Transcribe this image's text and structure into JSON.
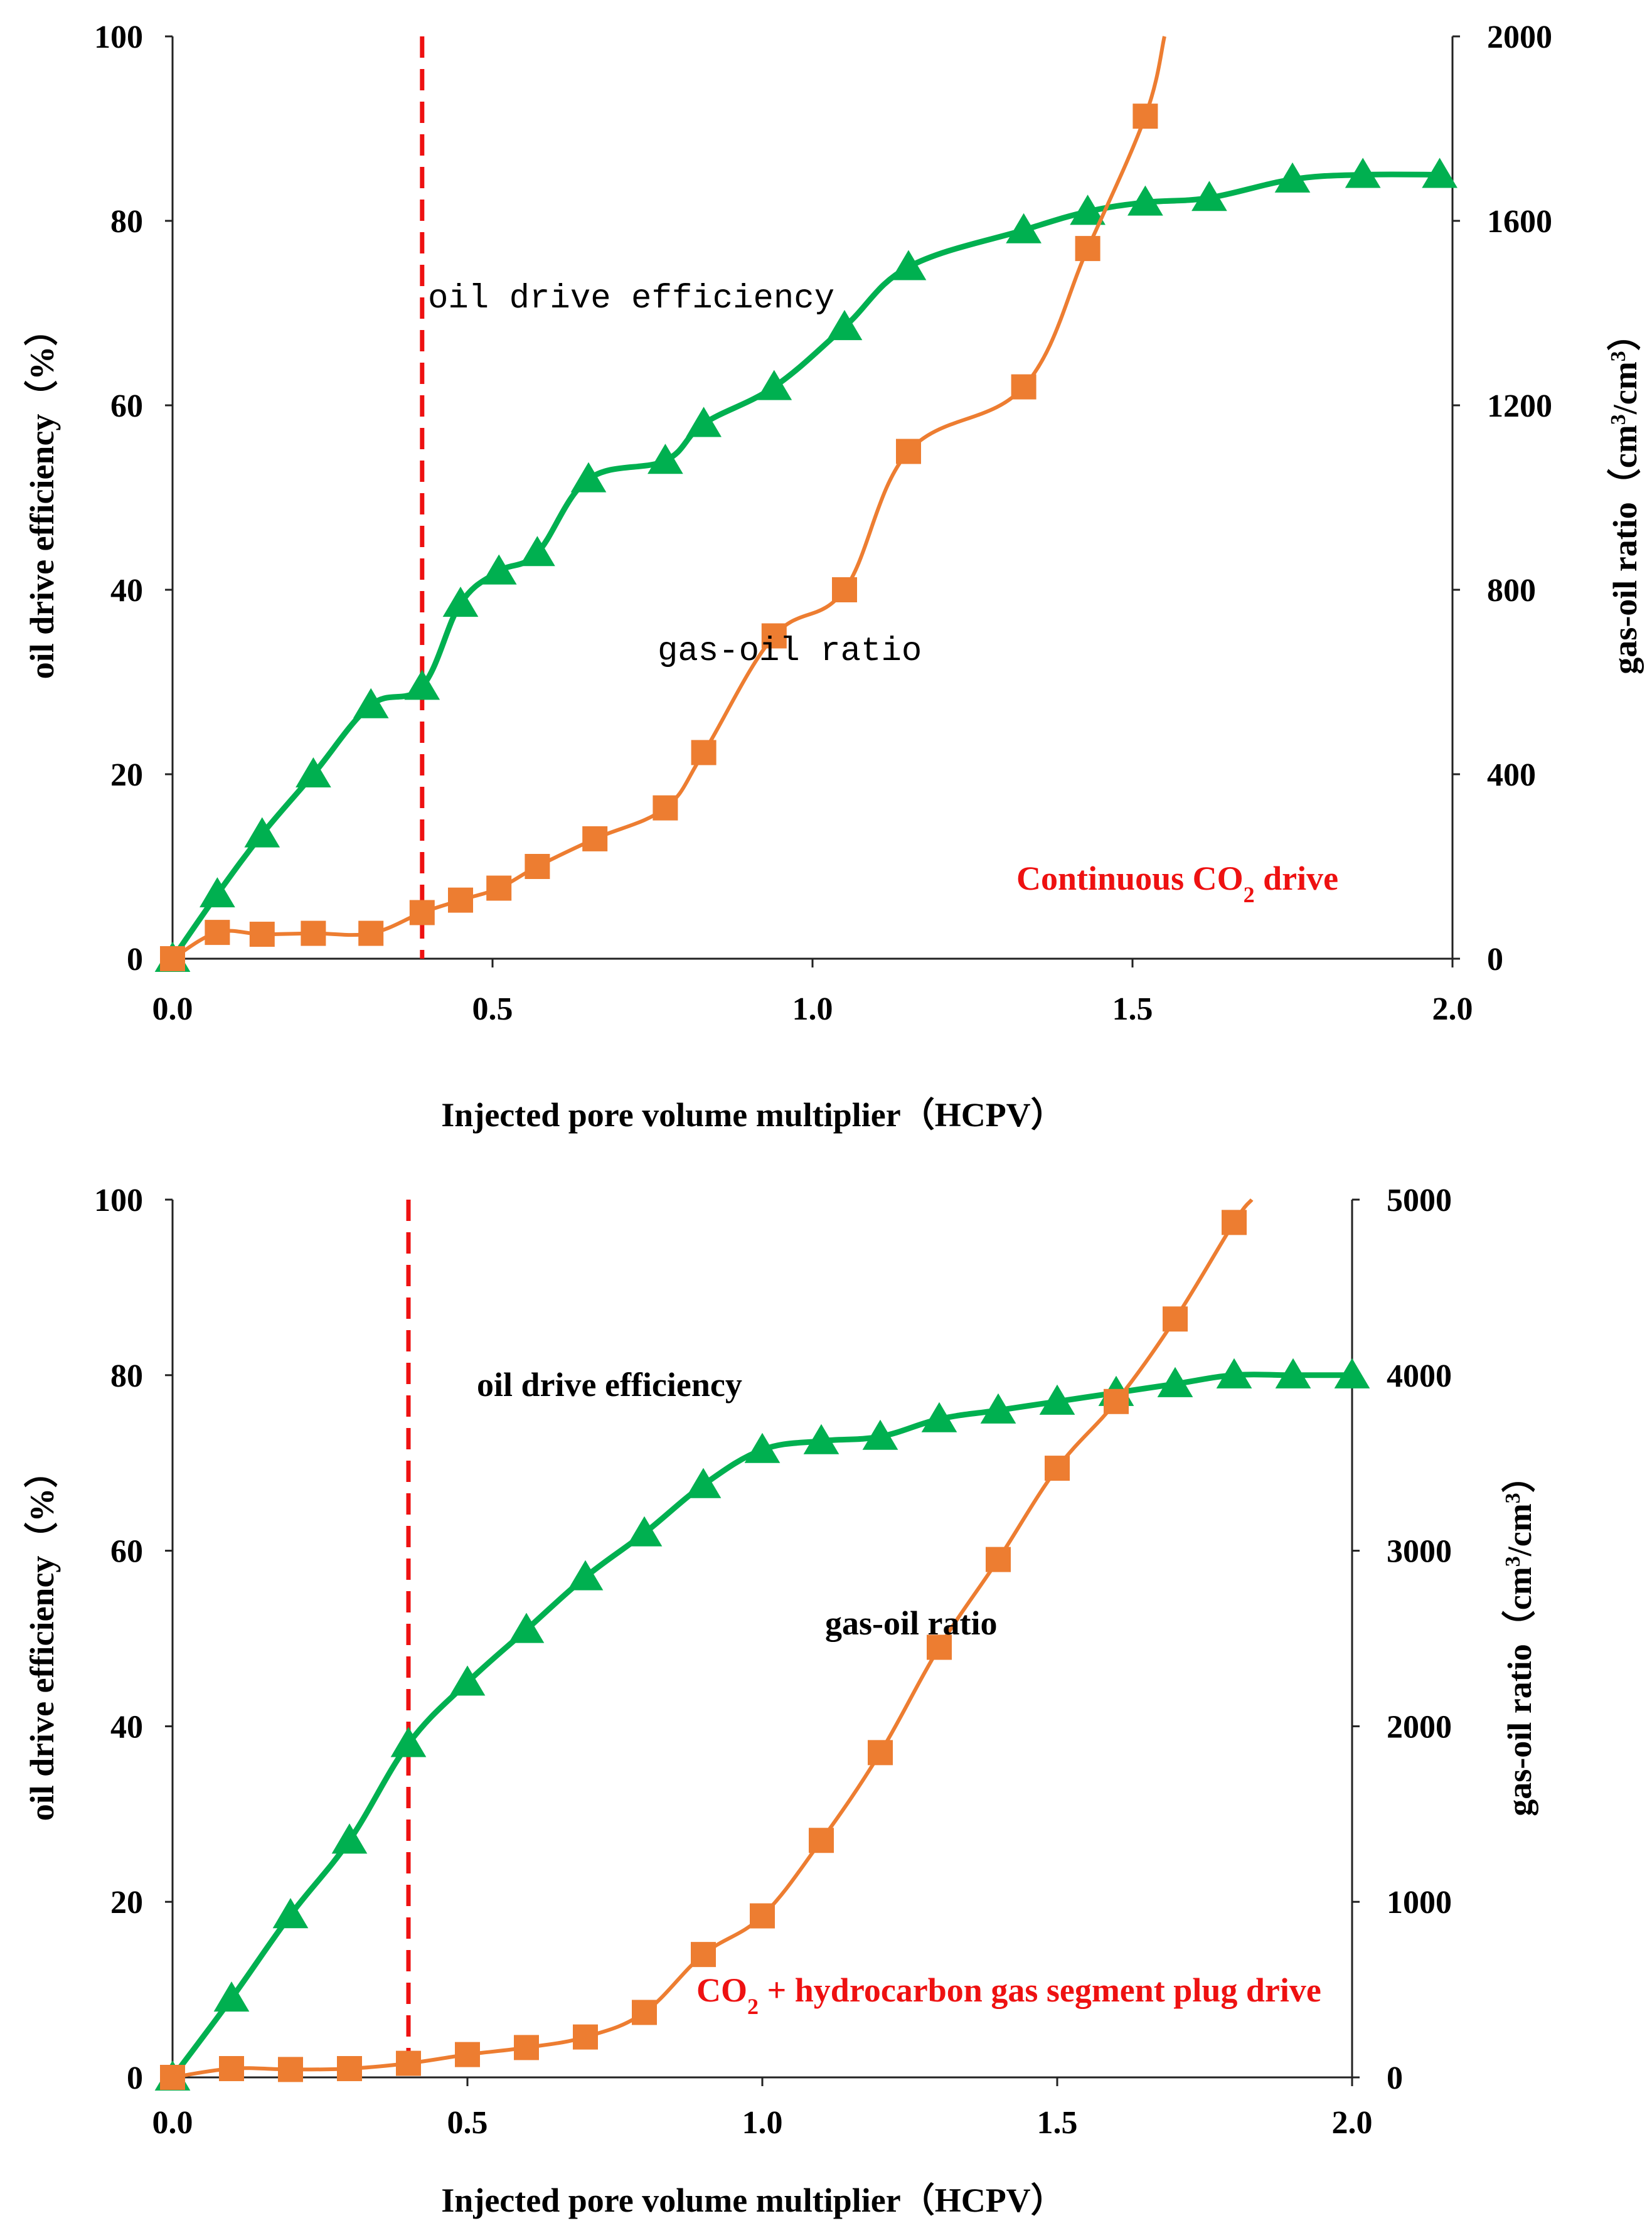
{
  "chart_data": [
    {
      "type": "line",
      "xlabel": "Injected pore volume multiplier（HCPV）",
      "ylabel_left": "oil drive efficiency（%）",
      "ylabel_right": "gas-oil ratio（cm³/cm³）",
      "ylabel_right_parts": [
        "gas-oil ratio（cm",
        "3",
        "/cm",
        "3",
        "）"
      ],
      "xlim": [
        0,
        2.0
      ],
      "ylim_left": [
        0,
        100
      ],
      "ylim_right": [
        0,
        2000
      ],
      "x_ticks": [
        "0.0",
        "0.5",
        "1.0",
        "1.5",
        "2.0"
      ],
      "y_left_ticks": [
        "0",
        "20",
        "40",
        "60",
        "80",
        "100"
      ],
      "y_right_ticks": [
        "0",
        "400",
        "800",
        "1200",
        "1600",
        "2000"
      ],
      "grid": false,
      "dashed_marker_x": 0.39,
      "annotation": "Continuous CO₂ drive",
      "annotation_parts": [
        "Continuous CO",
        "2",
        " drive"
      ],
      "series": [
        {
          "name": "oil drive efficiency",
          "axis": "left",
          "color": "#00b050",
          "marker": "triangle",
          "x": [
            0.0,
            0.07,
            0.14,
            0.22,
            0.31,
            0.39,
            0.45,
            0.51,
            0.57,
            0.65,
            0.77,
            0.83,
            0.94,
            1.05,
            1.15,
            1.33,
            1.43,
            1.52,
            1.62,
            1.75,
            1.86,
            1.98
          ],
          "values": [
            0,
            7,
            13.5,
            20,
            27.5,
            29.5,
            38.5,
            42,
            44,
            52,
            54,
            58,
            62,
            68.5,
            75,
            79,
            81,
            82,
            82.5,
            84.5,
            85,
            85
          ]
        },
        {
          "name": "gas-oil ratio",
          "axis": "right",
          "color": "#ed7d31",
          "marker": "square",
          "x": [
            0.0,
            0.07,
            0.14,
            0.22,
            0.31,
            0.39,
            0.45,
            0.51,
            0.57,
            0.66,
            0.77,
            0.83,
            0.94,
            1.05,
            1.15,
            1.33,
            1.43,
            1.52
          ],
          "values": [
            0,
            57,
            53,
            55,
            55,
            100,
            127,
            153,
            200,
            260,
            327,
            447,
            700,
            800,
            1100,
            1240,
            1540,
            1827
          ],
          "end_x": 1.55,
          "end_value": 2000
        }
      ]
    },
    {
      "type": "line",
      "xlabel": "Injected pore volume multiplier（HCPV）",
      "ylabel_left": "oil drive efficiency（%）",
      "ylabel_right": "gas-oil ratio（cm³/cm³）",
      "ylabel_right_parts": [
        "gas-oil ratio（cm",
        "3",
        "/cm",
        "3",
        "）"
      ],
      "xlim": [
        0,
        2.0
      ],
      "ylim_left": [
        0,
        100
      ],
      "ylim_right": [
        0,
        5000
      ],
      "x_ticks": [
        "0.0",
        "0.5",
        "1.0",
        "1.5",
        "2.0"
      ],
      "y_left_ticks": [
        "0",
        "20",
        "40",
        "60",
        "80",
        "100"
      ],
      "y_right_ticks": [
        "0",
        "1000",
        "2000",
        "3000",
        "4000",
        "5000"
      ],
      "grid": false,
      "dashed_marker_x": 0.4,
      "annotation": "CO₂ + hydrocarbon gas segment plug drive",
      "annotation_parts": [
        "CO",
        "2",
        " + hydrocarbon gas segment plug drive"
      ],
      "series": [
        {
          "name": "oil drive efficiency",
          "axis": "left",
          "color": "#00b050",
          "marker": "triangle",
          "x": [
            0.0,
            0.1,
            0.2,
            0.3,
            0.4,
            0.5,
            0.6,
            0.7,
            0.8,
            0.9,
            1.0,
            1.1,
            1.2,
            1.3,
            1.4,
            1.5,
            1.6,
            1.7,
            1.8,
            1.9,
            2.0
          ],
          "values": [
            0,
            9,
            18.5,
            27,
            38,
            45,
            51,
            57,
            62,
            67.5,
            71.5,
            72.5,
            73,
            75,
            76,
            77,
            78,
            79,
            80,
            80,
            80
          ],
          "end_x": 2.0,
          "end_value": 80
        },
        {
          "name": "gas-oil ratio",
          "axis": "right",
          "color": "#ed7d31",
          "marker": "square",
          "x": [
            0.0,
            0.1,
            0.2,
            0.3,
            0.4,
            0.5,
            0.6,
            0.7,
            0.8,
            0.9,
            1.0,
            1.1,
            1.2,
            1.3,
            1.4,
            1.5,
            1.6,
            1.7,
            1.8
          ],
          "values": [
            0,
            50,
            45,
            50,
            80,
            130,
            170,
            230,
            370,
            700,
            920,
            1350,
            1850,
            2450,
            2950,
            3470,
            3850,
            4320,
            4870
          ],
          "end_x": 1.83,
          "end_value": 5000
        }
      ]
    }
  ],
  "labels": {
    "top_oil": "oil drive efficiency",
    "top_gas": "gas-oil ratio",
    "bottom_oil": "oil drive efficiency",
    "bottom_gas": "gas-oil ratio"
  }
}
